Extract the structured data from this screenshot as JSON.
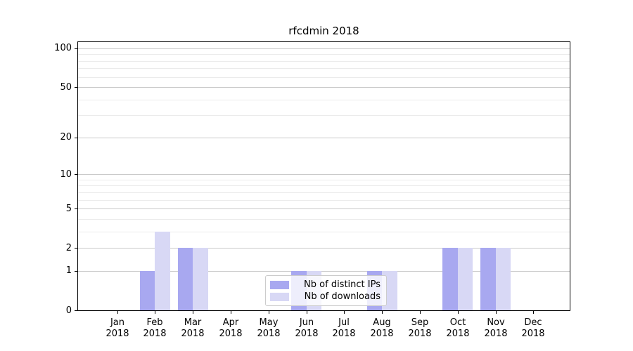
{
  "chart_data": {
    "type": "bar",
    "title": "rfcdmin 2018",
    "categories": [
      "Jan",
      "Feb",
      "Mar",
      "Apr",
      "May",
      "Jun",
      "Jul",
      "Aug",
      "Sep",
      "Oct",
      "Nov",
      "Dec"
    ],
    "category_year": "2018",
    "series": [
      {
        "name": "Nb of distinct IPs",
        "color": "#a8a8f0",
        "values": [
          0,
          1,
          2,
          0,
          0,
          1,
          0,
          1,
          0,
          2,
          2,
          0
        ]
      },
      {
        "name": "Nb of downloads",
        "color": "#d8d8f5",
        "values": [
          0,
          3,
          2,
          0,
          0,
          1,
          0,
          1,
          0,
          2,
          2,
          0
        ]
      }
    ],
    "y_axis": {
      "scale": "log1p",
      "major_ticks": [
        0,
        1,
        2,
        5,
        10,
        20,
        50,
        100
      ],
      "minor_gridlines": [
        3,
        4,
        6,
        7,
        8,
        9,
        30,
        40,
        60,
        70,
        80,
        90
      ],
      "range_max": 115
    },
    "legend": {
      "position": "lower center",
      "frame_alpha": 0.8
    },
    "grid": true,
    "colors": {
      "major_grid": "#c9c9c9",
      "minor_grid": "#ebebeb",
      "axis": "#000000",
      "text": "#000000"
    }
  }
}
